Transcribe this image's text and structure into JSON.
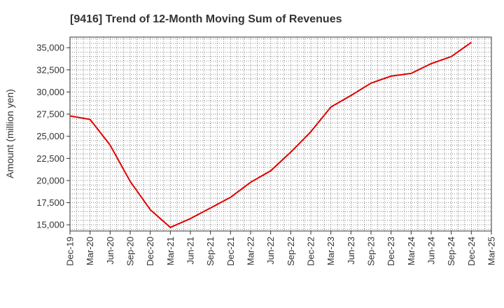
{
  "chart_data": {
    "type": "line",
    "title": "[9416]  Trend of 12-Month Moving Sum of Revenues",
    "ylabel": "Amount (million yen)",
    "xlabel": "",
    "categories": [
      "Dec-19",
      "Mar-20",
      "Jun-20",
      "Sep-20",
      "Dec-20",
      "Mar-21",
      "Jun-21",
      "Sep-21",
      "Dec-21",
      "Mar-22",
      "Jun-22",
      "Sep-22",
      "Dec-22",
      "Mar-23",
      "Jun-23",
      "Sep-23",
      "Dec-23",
      "Mar-24",
      "Jun-24",
      "Sep-24",
      "Dec-24",
      "Mar-25"
    ],
    "yticks": [
      "15,000",
      "17,500",
      "20,000",
      "22,500",
      "25,000",
      "27,500",
      "30,000",
      "32,500",
      "35,000"
    ],
    "ytick_values": [
      15000,
      17500,
      20000,
      22500,
      25000,
      27500,
      30000,
      32500,
      35000
    ],
    "ylim": [
      14300,
      36200
    ],
    "grid": true,
    "series": [
      {
        "color": "#e00000",
        "values": [
          27300,
          26900,
          24000,
          19900,
          16700,
          14700,
          15700,
          16900,
          18100,
          19800,
          21100,
          23200,
          25500,
          28300,
          29600,
          31000,
          31800,
          32100,
          33200,
          34000,
          35600,
          null
        ]
      }
    ]
  }
}
